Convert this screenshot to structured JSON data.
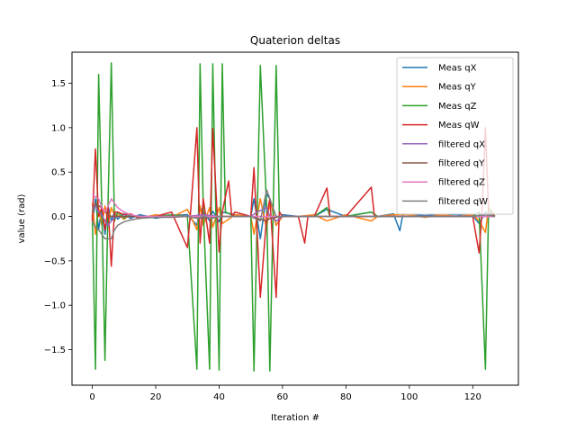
{
  "chart_data": {
    "type": "line",
    "title": "Quaterion deltas",
    "xlabel": "Iteration #",
    "ylabel": "value (rad)",
    "xlim": [
      -6.4,
      134.4
    ],
    "ylim": [
      -1.9,
      1.85
    ],
    "xticks": [
      0,
      20,
      40,
      60,
      80,
      100,
      120
    ],
    "yticks": [
      -1.5,
      -1.0,
      -0.5,
      0.0,
      0.5,
      1.0,
      1.5
    ],
    "ytick_labels": [
      "−1.5",
      "−1.0",
      "−0.5",
      "0.0",
      "0.5",
      "1.0",
      "1.5"
    ],
    "grid": false,
    "legend_position": "upper-right",
    "series": [
      {
        "name": "Meas qX",
        "color": "#1f77b4",
        "points": [
          [
            0,
            -0.1
          ],
          [
            1,
            0.2
          ],
          [
            2,
            -0.15
          ],
          [
            3,
            0.1
          ],
          [
            4,
            -0.2
          ],
          [
            5,
            0.12
          ],
          [
            6,
            -0.05
          ],
          [
            7,
            0.05
          ],
          [
            8,
            -0.03
          ],
          [
            10,
            0.03
          ],
          [
            12,
            -0.02
          ],
          [
            15,
            0.02
          ],
          [
            20,
            -0.02
          ],
          [
            25,
            0.01
          ],
          [
            30,
            0.02
          ],
          [
            33,
            -0.1
          ],
          [
            34,
            0.1
          ],
          [
            37,
            -0.05
          ],
          [
            38,
            0.06
          ],
          [
            40,
            -0.06
          ],
          [
            41,
            0.05
          ],
          [
            45,
            0.02
          ],
          [
            50,
            0.0
          ],
          [
            51,
            0.2
          ],
          [
            53,
            -0.25
          ],
          [
            55,
            0.25
          ],
          [
            56,
            0.2
          ],
          [
            58,
            -0.1
          ],
          [
            60,
            0.02
          ],
          [
            65,
            0.0
          ],
          [
            70,
            0.0
          ],
          [
            74,
            0.08
          ],
          [
            80,
            0.0
          ],
          [
            88,
            0.05
          ],
          [
            90,
            0.0
          ],
          [
            95,
            0.03
          ],
          [
            97,
            -0.16
          ],
          [
            98,
            0.03
          ],
          [
            100,
            0.02
          ],
          [
            105,
            0.01
          ],
          [
            110,
            0.02
          ],
          [
            115,
            0.02
          ],
          [
            120,
            0.01
          ],
          [
            122,
            -0.08
          ],
          [
            124,
            0.05
          ],
          [
            125,
            0.02
          ],
          [
            127,
            0.01
          ]
        ]
      },
      {
        "name": "Meas qY",
        "color": "#ff7f0e",
        "points": [
          [
            0,
            0.15
          ],
          [
            1,
            -0.2
          ],
          [
            2,
            0.1
          ],
          [
            3,
            -0.1
          ],
          [
            4,
            0.12
          ],
          [
            5,
            -0.08
          ],
          [
            6,
            0.1
          ],
          [
            7,
            0.02
          ],
          [
            8,
            0.02
          ],
          [
            10,
            -0.03
          ],
          [
            12,
            0.02
          ],
          [
            15,
            -0.02
          ],
          [
            20,
            0.02
          ],
          [
            25,
            -0.01
          ],
          [
            30,
            0.08
          ],
          [
            33,
            -0.15
          ],
          [
            34,
            0.12
          ],
          [
            35,
            -0.1
          ],
          [
            37,
            0.1
          ],
          [
            38,
            -0.12
          ],
          [
            40,
            0.1
          ],
          [
            41,
            -0.08
          ],
          [
            45,
            0.02
          ],
          [
            50,
            0.0
          ],
          [
            51,
            -0.2
          ],
          [
            53,
            0.2
          ],
          [
            55,
            -0.15
          ],
          [
            56,
            0.2
          ],
          [
            58,
            -0.1
          ],
          [
            60,
            0.0
          ],
          [
            65,
            0.0
          ],
          [
            70,
            0.02
          ],
          [
            74,
            -0.05
          ],
          [
            80,
            0.02
          ],
          [
            88,
            -0.05
          ],
          [
            90,
            0.0
          ],
          [
            95,
            0.02
          ],
          [
            100,
            0.02
          ],
          [
            105,
            -0.01
          ],
          [
            110,
            0.02
          ],
          [
            115,
            0.0
          ],
          [
            120,
            0.02
          ],
          [
            122,
            -0.05
          ],
          [
            124,
            -0.18
          ],
          [
            125,
            0.1
          ],
          [
            127,
            0.02
          ]
        ]
      },
      {
        "name": "Meas qZ",
        "color": "#2ca02c",
        "points": [
          [
            0,
            0.02
          ],
          [
            1,
            -1.72
          ],
          [
            2,
            1.6
          ],
          [
            3,
            0.1
          ],
          [
            4,
            -1.62
          ],
          [
            5,
            0.2
          ],
          [
            6,
            1.73
          ],
          [
            7,
            -0.05
          ],
          [
            8,
            0.05
          ],
          [
            10,
            -0.02
          ],
          [
            12,
            0.02
          ],
          [
            15,
            -0.02
          ],
          [
            20,
            0.0
          ],
          [
            25,
            0.02
          ],
          [
            30,
            0.0
          ],
          [
            33,
            -1.72
          ],
          [
            34,
            1.72
          ],
          [
            35,
            0.1
          ],
          [
            37,
            -1.72
          ],
          [
            38,
            1.72
          ],
          [
            40,
            -1.73
          ],
          [
            41,
            1.72
          ],
          [
            42,
            0.05
          ],
          [
            45,
            0.0
          ],
          [
            50,
            0.0
          ],
          [
            51,
            -1.74
          ],
          [
            53,
            1.7
          ],
          [
            55,
            0.1
          ],
          [
            56,
            -1.74
          ],
          [
            58,
            1.7
          ],
          [
            59,
            0.05
          ],
          [
            60,
            0.0
          ],
          [
            65,
            0.0
          ],
          [
            70,
            0.0
          ],
          [
            74,
            0.1
          ],
          [
            75,
            0.0
          ],
          [
            80,
            0.0
          ],
          [
            88,
            0.05
          ],
          [
            90,
            0.0
          ],
          [
            95,
            0.0
          ],
          [
            100,
            0.0
          ],
          [
            105,
            0.0
          ],
          [
            110,
            0.0
          ],
          [
            115,
            0.0
          ],
          [
            120,
            0.0
          ],
          [
            122,
            0.05
          ],
          [
            124,
            -1.72
          ],
          [
            125,
            0.1
          ],
          [
            127,
            0.0
          ]
        ]
      },
      {
        "name": "Meas qW",
        "color": "#d62728",
        "points": [
          [
            0,
            -0.05
          ],
          [
            1,
            0.76
          ],
          [
            2,
            0.0
          ],
          [
            3,
            0.1
          ],
          [
            4,
            -0.15
          ],
          [
            5,
            0.1
          ],
          [
            6,
            -0.56
          ],
          [
            7,
            0.05
          ],
          [
            8,
            0.05
          ],
          [
            10,
            0.02
          ],
          [
            12,
            0.03
          ],
          [
            15,
            -0.02
          ],
          [
            20,
            0.0
          ],
          [
            25,
            0.05
          ],
          [
            30,
            -0.35
          ],
          [
            31,
            0.05
          ],
          [
            33,
            1.0
          ],
          [
            34,
            -0.3
          ],
          [
            35,
            0.2
          ],
          [
            37,
            -0.3
          ],
          [
            38,
            0.99
          ],
          [
            40,
            -0.4
          ],
          [
            41,
            0.05
          ],
          [
            43,
            0.4
          ],
          [
            44,
            0.0
          ],
          [
            45,
            0.05
          ],
          [
            50,
            0.0
          ],
          [
            51,
            0.55
          ],
          [
            53,
            -0.91
          ],
          [
            55,
            0.0
          ],
          [
            56,
            0.2
          ],
          [
            58,
            -0.91
          ],
          [
            59,
            0.05
          ],
          [
            60,
            0.0
          ],
          [
            65,
            0.0
          ],
          [
            67,
            -0.3
          ],
          [
            68,
            0.0
          ],
          [
            70,
            0.0
          ],
          [
            74,
            0.32
          ],
          [
            75,
            0.0
          ],
          [
            80,
            0.0
          ],
          [
            88,
            0.33
          ],
          [
            89,
            0.0
          ],
          [
            90,
            0.0
          ],
          [
            95,
            0.0
          ],
          [
            100,
            0.0
          ],
          [
            105,
            0.0
          ],
          [
            110,
            0.0
          ],
          [
            115,
            0.0
          ],
          [
            120,
            0.0
          ],
          [
            122,
            -0.41
          ],
          [
            123,
            0.1
          ],
          [
            124,
            1.0
          ],
          [
            125,
            0.05
          ],
          [
            127,
            0.0
          ]
        ]
      },
      {
        "name": "filtered qX",
        "color": "#9467bd",
        "points": [
          [
            0,
            0.1
          ],
          [
            1,
            0.12
          ],
          [
            2,
            0.05
          ],
          [
            3,
            0.02
          ],
          [
            4,
            -0.05
          ],
          [
            5,
            -0.1
          ],
          [
            6,
            -0.05
          ],
          [
            7,
            -0.02
          ],
          [
            8,
            0.0
          ],
          [
            10,
            0.0
          ],
          [
            15,
            0.0
          ],
          [
            20,
            0.0
          ],
          [
            30,
            0.0
          ],
          [
            35,
            0.02
          ],
          [
            40,
            0.0
          ],
          [
            45,
            0.0
          ],
          [
            50,
            0.0
          ],
          [
            52,
            0.05
          ],
          [
            55,
            0.1
          ],
          [
            56,
            0.0
          ],
          [
            58,
            -0.05
          ],
          [
            60,
            0.0
          ],
          [
            70,
            0.0
          ],
          [
            80,
            0.0
          ],
          [
            90,
            0.0
          ],
          [
            100,
            0.0
          ],
          [
            110,
            0.0
          ],
          [
            120,
            0.0
          ],
          [
            124,
            0.02
          ],
          [
            127,
            0.0
          ]
        ]
      },
      {
        "name": "filtered qY",
        "color": "#8c564b",
        "points": [
          [
            0,
            0.05
          ],
          [
            1,
            0.15
          ],
          [
            2,
            0.12
          ],
          [
            3,
            0.1
          ],
          [
            4,
            0.05
          ],
          [
            5,
            0.02
          ],
          [
            6,
            0.0
          ],
          [
            8,
            0.0
          ],
          [
            10,
            0.0
          ],
          [
            20,
            0.0
          ],
          [
            30,
            0.0
          ],
          [
            35,
            -0.02
          ],
          [
            40,
            0.0
          ],
          [
            50,
            0.0
          ],
          [
            55,
            -0.05
          ],
          [
            56,
            -0.02
          ],
          [
            60,
            0.0
          ],
          [
            70,
            0.0
          ],
          [
            80,
            0.0
          ],
          [
            90,
            0.0
          ],
          [
            100,
            0.0
          ],
          [
            110,
            0.0
          ],
          [
            120,
            0.0
          ],
          [
            127,
            0.0
          ]
        ]
      },
      {
        "name": "filtered qZ",
        "color": "#e377c2",
        "points": [
          [
            0,
            0.25
          ],
          [
            1,
            0.22
          ],
          [
            2,
            0.2
          ],
          [
            3,
            0.1
          ],
          [
            4,
            0.05
          ],
          [
            5,
            0.12
          ],
          [
            6,
            0.2
          ],
          [
            7,
            0.15
          ],
          [
            8,
            0.1
          ],
          [
            10,
            0.05
          ],
          [
            12,
            0.02
          ],
          [
            15,
            0.0
          ],
          [
            20,
            0.0
          ],
          [
            30,
            0.0
          ],
          [
            35,
            0.0
          ],
          [
            40,
            0.0
          ],
          [
            50,
            0.0
          ],
          [
            55,
            0.0
          ],
          [
            60,
            0.0
          ],
          [
            70,
            0.0
          ],
          [
            80,
            0.0
          ],
          [
            90,
            0.0
          ],
          [
            100,
            0.0
          ],
          [
            110,
            0.0
          ],
          [
            120,
            0.0
          ],
          [
            127,
            0.0
          ]
        ]
      },
      {
        "name": "filtered qW",
        "color": "#7f7f7f",
        "points": [
          [
            0,
            -0.05
          ],
          [
            1,
            -0.12
          ],
          [
            2,
            -0.15
          ],
          [
            3,
            -0.2
          ],
          [
            4,
            -0.25
          ],
          [
            5,
            -0.25
          ],
          [
            6,
            -0.25
          ],
          [
            7,
            -0.15
          ],
          [
            8,
            -0.1
          ],
          [
            10,
            -0.06
          ],
          [
            12,
            -0.04
          ],
          [
            15,
            -0.02
          ],
          [
            20,
            -0.01
          ],
          [
            25,
            -0.01
          ],
          [
            30,
            0.0
          ],
          [
            33,
            -0.02
          ],
          [
            35,
            0.0
          ],
          [
            38,
            -0.02
          ],
          [
            40,
            0.0
          ],
          [
            45,
            0.0
          ],
          [
            50,
            0.0
          ],
          [
            53,
            -0.05
          ],
          [
            55,
            0.3
          ],
          [
            56,
            0.2
          ],
          [
            58,
            0.0
          ],
          [
            60,
            0.0
          ],
          [
            70,
            0.0
          ],
          [
            80,
            0.0
          ],
          [
            90,
            0.0
          ],
          [
            100,
            0.0
          ],
          [
            110,
            0.0
          ],
          [
            120,
            0.0
          ],
          [
            124,
            0.02
          ],
          [
            127,
            0.0
          ]
        ]
      }
    ]
  }
}
